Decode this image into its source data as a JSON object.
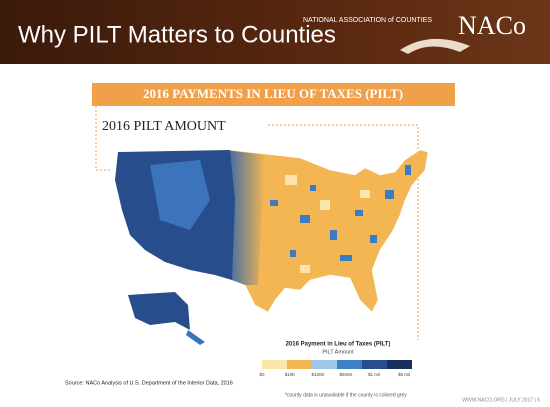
{
  "header": {
    "title": "Why PILT Matters to Counties",
    "logo_text": "NATIONAL ASSOCIATION of COUNTIES",
    "logo_mark": "NACo"
  },
  "banner": "2016 PAYMENTS IN LIEU OF TAXES (PILT)",
  "subtitle": "2016 PILT AMOUNT",
  "legend": {
    "title": "2016 Payment in Lieu of Taxes (PILT)",
    "subtitle": "PILT Amount",
    "labels": [
      "$0",
      "$10K",
      "$100K",
      "$500K",
      "$1 mil",
      "$5 mil"
    ]
  },
  "source": "Source: NACo Analysis of U.S. Department of the Interior Data, 2016",
  "note": "*county data is unavailable if the county is colored grey",
  "footer": "WWW.NACO.ORG | JULY 2017 | 6"
}
